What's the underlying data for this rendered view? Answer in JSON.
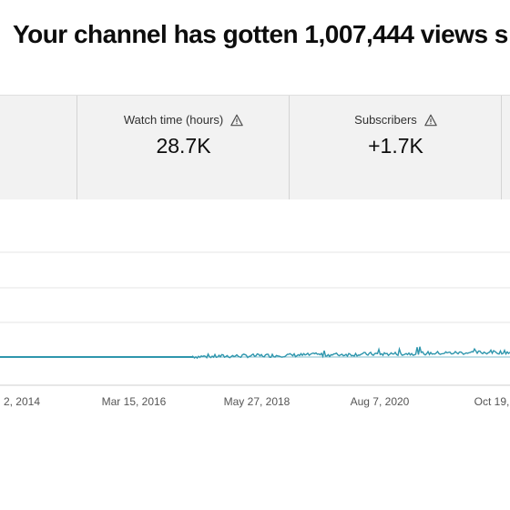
{
  "headline": "Your channel has gotten 1,007,444 views s",
  "metrics": [
    {
      "label": "Watch time (hours)",
      "value": "28.7K",
      "icon": "warning-icon"
    },
    {
      "label": "Subscribers",
      "value": "+1.7K",
      "icon": "warning-icon"
    }
  ],
  "chart_data": {
    "type": "line",
    "title": "",
    "xlabel": "",
    "ylabel": "",
    "x_tick_labels": [
      "2, 2014",
      "Mar 15, 2016",
      "May 27, 2018",
      "Aug 7, 2020",
      "Oct 19,"
    ],
    "line_color": "#2e96ad",
    "gridlines": true,
    "series": [
      {
        "points": [
          {
            "x": "2012",
            "y": 0.0
          },
          {
            "x": "2014",
            "y": 0.0
          },
          {
            "x": "2016",
            "y": 0.0
          },
          {
            "x": "2017",
            "y": 0.04
          },
          {
            "x": "2018",
            "y": 0.06
          },
          {
            "x": "2019",
            "y": 0.08
          },
          {
            "x": "2020",
            "y": 0.1
          },
          {
            "x": "2021",
            "y": 0.12
          },
          {
            "x": "2022",
            "y": 0.14
          },
          {
            "x": "2023",
            "y": 0.16
          }
        ]
      }
    ]
  }
}
